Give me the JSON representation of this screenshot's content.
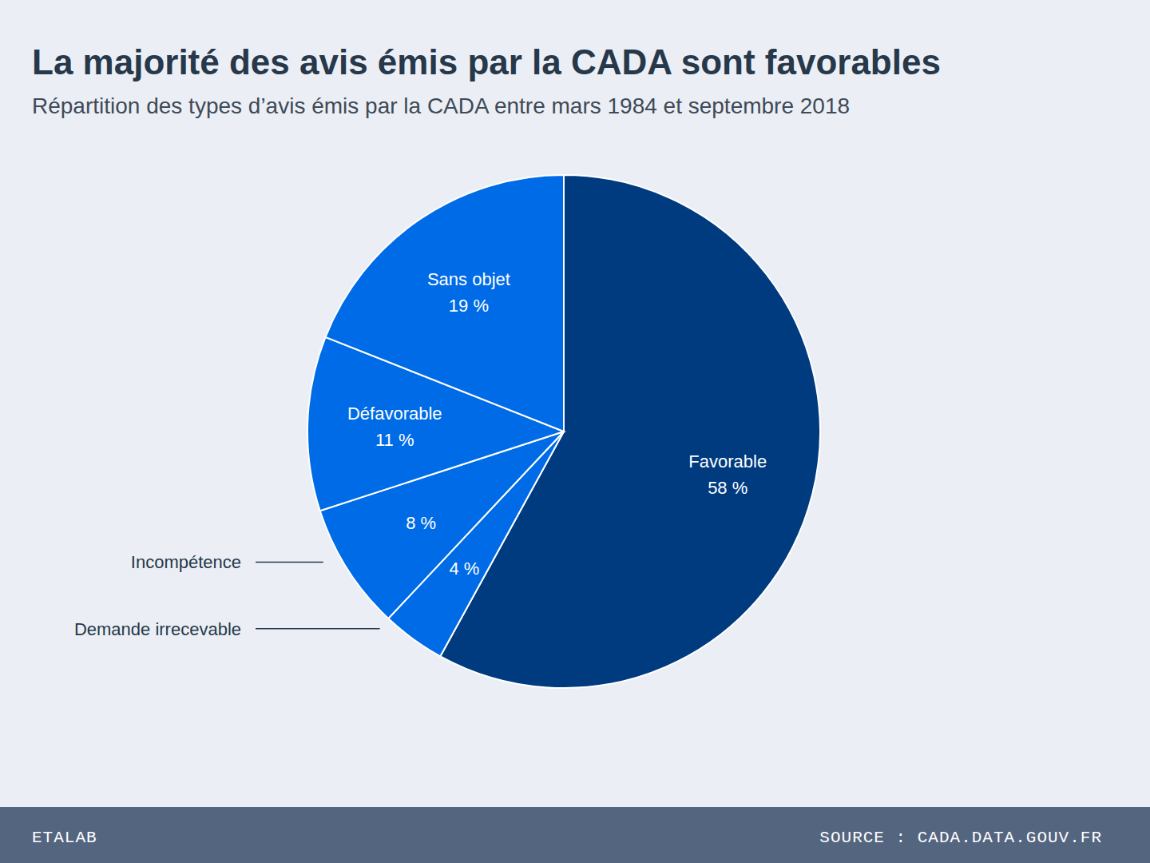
{
  "chart_data": {
    "type": "pie",
    "title": "La majorité des avis émis par la CADA sont favorables",
    "subtitle": "Répartition des types d’avis émis par la CADA entre mars 1984 et septembre 2018",
    "categories": [
      "Favorable",
      "Demande irrecevable",
      "Incompétence",
      "Défavorable",
      "Sans objet"
    ],
    "values": [
      58,
      4,
      8,
      11,
      19
    ],
    "value_labels": [
      "58 %",
      "4 %",
      "8 %",
      "11 %",
      "19 %"
    ],
    "colors": [
      "#003b80",
      "#006be6",
      "#006be6",
      "#006be6",
      "#006be6"
    ],
    "data_labels": true,
    "credit": "ETALAB",
    "source": "SOURCE : CADA.DATA.GOUV.FR"
  }
}
